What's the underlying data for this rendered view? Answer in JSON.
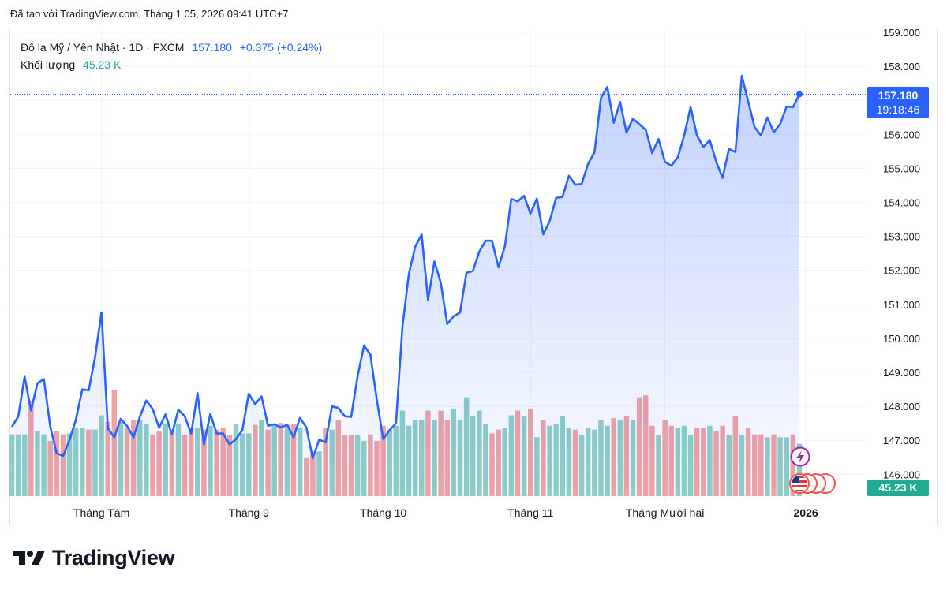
{
  "caption": "Đã tạo với TradingView.com, Tháng 1 05, 2026 09:41 UTC+7",
  "legend": {
    "symbol": "Đô la Mỹ / Yên Nhật · 1D · FXCM",
    "price": "157.180",
    "change": "+0.375 (+0.24%)",
    "volume_label": "Khối lượng",
    "volume_value": "45.23 K"
  },
  "price_tag": {
    "price": "157.180",
    "countdown": "19:18:46"
  },
  "volume_tag": "45.23 K",
  "footer": {
    "brand": "TradingView",
    "logo_icon": "tradingview-logo-icon"
  },
  "colors": {
    "line": "#2962ff",
    "area_top": "#c6d4fc",
    "vol_up": "#8fcfc6",
    "vol_down": "#f0a3a5",
    "grid": "#f0f3fa"
  },
  "markers": {
    "event_icon": "lightning-icon",
    "flag_icon": "us-flag-icon"
  },
  "chart_data": {
    "type": "area",
    "title": "Đô la Mỹ / Yên Nhật · 1D · FXCM",
    "y_ticks": [
      "159.000",
      "158.000",
      "157.000",
      "156.000",
      "155.000",
      "154.000",
      "153.000",
      "152.000",
      "151.000",
      "150.000",
      "149.000",
      "148.000",
      "147.000",
      "146.000"
    ],
    "ylim": [
      145.7,
      159.1
    ],
    "x_tick_labels": [
      {
        "label": "Tháng Tám",
        "index": 14
      },
      {
        "label": "Tháng 9",
        "index": 37
      },
      {
        "label": "Tháng 10",
        "index": 58
      },
      {
        "label": "Tháng 11",
        "index": 81
      },
      {
        "label": "Tháng Mười hai",
        "index": 102
      },
      {
        "label": "2026",
        "index": 124
      }
    ],
    "grid": true,
    "series": [
      {
        "name": "Đô la Mỹ / Yên Nhật",
        "close": [
          147.4,
          147.7,
          148.87,
          147.88,
          148.68,
          148.8,
          147.4,
          146.62,
          146.54,
          147.0,
          147.6,
          148.5,
          148.47,
          149.45,
          150.76,
          147.35,
          147.09,
          147.63,
          147.42,
          147.09,
          147.7,
          148.17,
          147.92,
          147.37,
          147.76,
          147.17,
          147.9,
          147.71,
          147.2,
          148.39,
          146.88,
          147.78,
          147.2,
          147.2,
          146.88,
          147.03,
          147.3,
          148.37,
          148.06,
          148.29,
          147.43,
          147.47,
          147.38,
          147.46,
          147.09,
          147.66,
          147.38,
          146.47,
          147.02,
          146.94,
          148.0,
          147.95,
          147.71,
          147.69,
          148.88,
          149.79,
          149.52,
          148.19,
          147.04,
          147.3,
          147.5,
          150.33,
          151.9,
          152.7,
          153.05,
          151.13,
          152.26,
          151.63,
          150.42,
          150.65,
          150.76,
          151.93,
          151.98,
          152.55,
          152.87,
          152.87,
          152.09,
          152.71,
          154.1,
          154.03,
          154.19,
          153.67,
          154.11,
          153.06,
          153.45,
          154.13,
          154.16,
          154.78,
          154.52,
          154.54,
          155.13,
          155.48,
          157.07,
          157.39,
          156.34,
          156.95,
          156.05,
          156.46,
          156.3,
          156.13,
          155.45,
          155.86,
          155.19,
          155.08,
          155.32,
          155.97,
          156.8,
          155.96,
          155.63,
          155.83,
          155.2,
          154.72,
          155.57,
          155.48,
          157.72,
          156.97,
          156.21,
          155.97,
          156.5,
          156.06,
          156.31,
          156.82,
          156.8,
          157.18
        ]
      },
      {
        "name": "Khối lượng",
        "values": [
          65,
          65,
          65,
          100,
          68,
          65,
          58,
          68,
          65,
          66,
          72,
          72,
          70,
          70,
          85,
          78,
          112,
          78,
          72,
          80,
          80,
          76,
          65,
          68,
          76,
          64,
          76,
          64,
          72,
          72,
          70,
          74,
          70,
          72,
          64,
          76,
          66,
          66,
          75,
          80,
          70,
          74,
          77,
          75,
          76,
          72,
          40,
          44,
          47,
          72,
          70,
          80,
          64,
          64,
          64,
          58,
          65,
          58,
          74,
          70,
          74,
          90,
          74,
          80,
          80,
          90,
          80,
          90,
          80,
          92,
          80,
          104,
          84,
          90,
          76,
          66,
          70,
          72,
          85,
          90,
          84,
          92,
          62,
          80,
          74,
          76,
          84,
          72,
          70,
          64,
          72,
          70,
          80,
          74,
          82,
          80,
          84,
          80,
          104,
          106,
          74,
          64,
          80,
          74,
          72,
          74,
          64,
          72,
          72,
          74,
          68,
          74,
          64,
          84,
          64,
          72,
          65,
          65,
          62,
          65,
          62,
          62,
          65,
          55
        ],
        "up": [
          1,
          1,
          1,
          0,
          1,
          1,
          0,
          0,
          0,
          1,
          1,
          1,
          0,
          1,
          1,
          0,
          0,
          1,
          0,
          0,
          1,
          1,
          0,
          0,
          1,
          0,
          1,
          0,
          0,
          1,
          0,
          1,
          0,
          0,
          0,
          1,
          1,
          1,
          0,
          1,
          0,
          1,
          0,
          1,
          0,
          1,
          0,
          0,
          1,
          0,
          1,
          0,
          0,
          0,
          1,
          1,
          0,
          0,
          0,
          1,
          1,
          1,
          1,
          1,
          1,
          0,
          1,
          0,
          0,
          1,
          1,
          1,
          1,
          1,
          1,
          0,
          0,
          1,
          1,
          0,
          1,
          0,
          1,
          0,
          1,
          1,
          1,
          1,
          0,
          1,
          1,
          1,
          1,
          1,
          0,
          1,
          0,
          1,
          0,
          0,
          0,
          1,
          0,
          0,
          1,
          1,
          1,
          0,
          0,
          1,
          0,
          0,
          1,
          0,
          1,
          0,
          0,
          0,
          1,
          0,
          1,
          1,
          0,
          1
        ]
      }
    ]
  }
}
